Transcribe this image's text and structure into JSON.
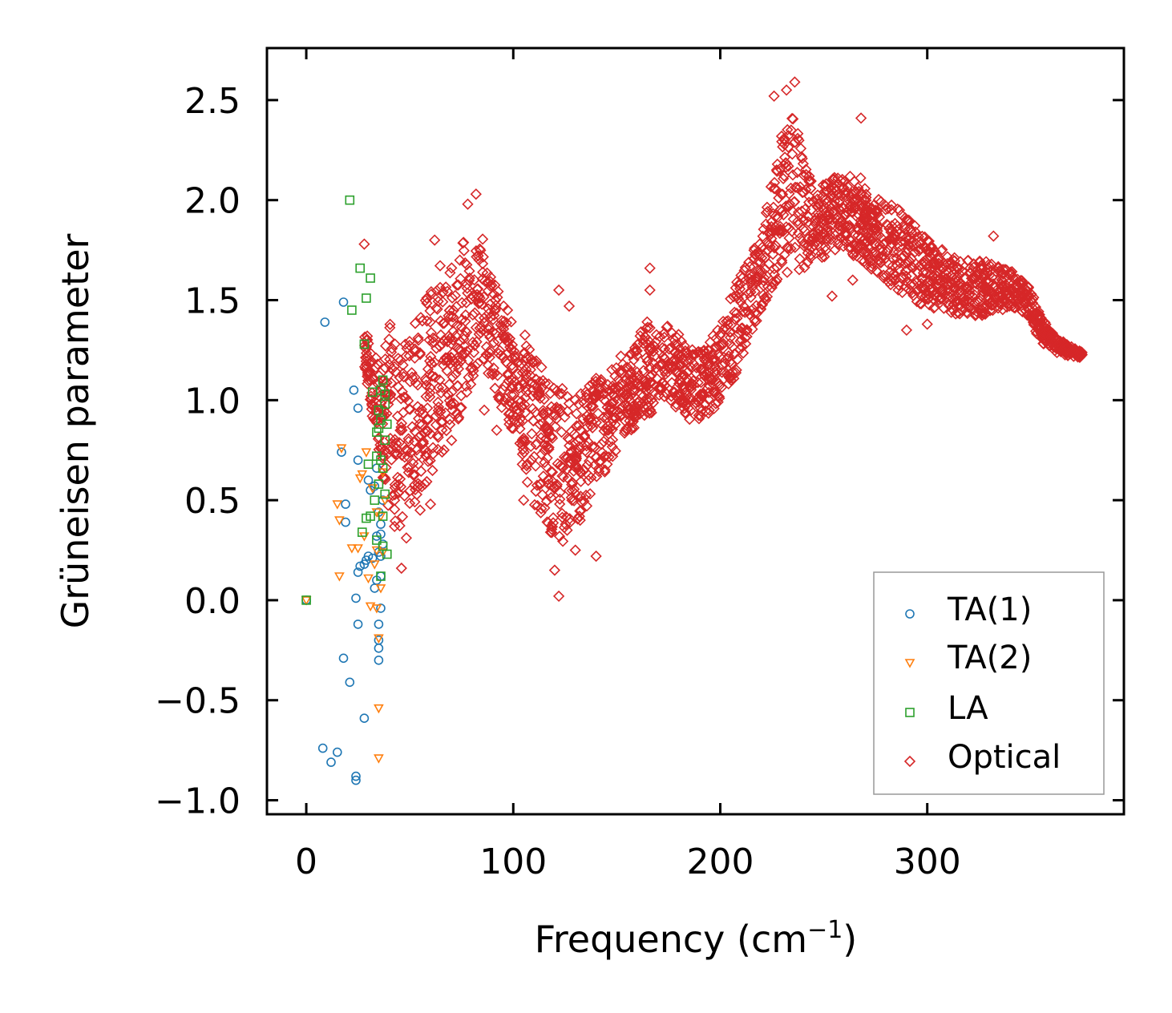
{
  "chart_data": {
    "type": "scatter",
    "title": "",
    "xlabel": "Frequency (cm",
    "xlabel_sup": "−1",
    "xlabel_close": ")",
    "ylabel": "Grüneisen parameter",
    "xlim": [
      -19,
      395
    ],
    "ylim": [
      -1.07,
      2.76
    ],
    "xticks": [
      0,
      100,
      200,
      300
    ],
    "xtick_labels": [
      "0",
      "100",
      "200",
      "300"
    ],
    "yticks": [
      -1.0,
      -0.5,
      0.0,
      0.5,
      1.0,
      1.5,
      2.0,
      2.5
    ],
    "ytick_labels": [
      "−1.0",
      "−0.5",
      "0.0",
      "0.5",
      "1.0",
      "1.5",
      "2.0",
      "2.5"
    ],
    "legend_position": "lower-right",
    "series": [
      {
        "name": "TA(1)",
        "marker": "circle",
        "color": "#1f77b4",
        "points": [
          [
            0,
            0
          ],
          [
            9,
            1.39
          ],
          [
            17,
            0.74
          ],
          [
            18,
            1.49
          ],
          [
            19,
            0.48
          ],
          [
            19,
            0.39
          ],
          [
            23,
            1.05
          ],
          [
            25,
            0.96
          ],
          [
            25,
            0.7
          ],
          [
            25,
            0.14
          ],
          [
            24,
            0.01
          ],
          [
            26,
            0.17
          ],
          [
            28,
            0.18
          ],
          [
            29,
            0.2
          ],
          [
            30,
            0.22
          ],
          [
            30,
            0.6
          ],
          [
            31,
            0.55
          ],
          [
            32,
            0.21
          ],
          [
            33,
            0.57
          ],
          [
            34,
            0.66
          ],
          [
            34,
            0.32
          ],
          [
            35,
            0.24
          ],
          [
            35,
            0.44
          ],
          [
            36,
            0.12
          ],
          [
            36,
            0.33
          ],
          [
            36,
            0.22
          ],
          [
            36,
            -0.04
          ],
          [
            35,
            -0.12
          ],
          [
            35,
            -0.2
          ],
          [
            35,
            -0.24
          ],
          [
            35,
            -0.3
          ],
          [
            25,
            -0.12
          ],
          [
            18,
            -0.29
          ],
          [
            21,
            -0.41
          ],
          [
            28,
            -0.59
          ],
          [
            8,
            -0.74
          ],
          [
            12,
            -0.81
          ],
          [
            15,
            -0.76
          ],
          [
            24,
            -0.88
          ],
          [
            24,
            -0.9
          ],
          [
            37,
            0.28
          ],
          [
            37,
            0.5
          ],
          [
            36,
            0.38
          ],
          [
            34,
            0.1
          ],
          [
            33,
            0.06
          ]
        ]
      },
      {
        "name": "TA(2)",
        "marker": "triangle-down",
        "color": "#ff7f0e",
        "points": [
          [
            0,
            0
          ],
          [
            15,
            0.48
          ],
          [
            16,
            0.4
          ],
          [
            16,
            0.12
          ],
          [
            17,
            0.76
          ],
          [
            22,
            0.26
          ],
          [
            25,
            0.26
          ],
          [
            26,
            0.61
          ],
          [
            27,
            0.63
          ],
          [
            28,
            0.32
          ],
          [
            29,
            0.74
          ],
          [
            30,
            0.11
          ],
          [
            31,
            -0.03
          ],
          [
            32,
            0.56
          ],
          [
            34,
            0.25
          ],
          [
            34,
            -0.04
          ],
          [
            35,
            -0.19
          ],
          [
            35,
            -0.54
          ],
          [
            35,
            -0.79
          ],
          [
            36,
            0.42
          ],
          [
            37,
            0.64
          ],
          [
            37,
            0.24
          ],
          [
            38,
            0.5
          ],
          [
            34,
            0.44
          ],
          [
            33,
            0.18
          ],
          [
            36,
            0.06
          ]
        ]
      },
      {
        "name": "LA",
        "marker": "square",
        "color": "#2ca02c",
        "points": [
          [
            0,
            0
          ],
          [
            21,
            2.0
          ],
          [
            22,
            1.45
          ],
          [
            26,
            1.66
          ],
          [
            28,
            1.28
          ],
          [
            29,
            1.51
          ],
          [
            31,
            1.61
          ],
          [
            32,
            1.04
          ],
          [
            27,
            0.34
          ],
          [
            29,
            0.41
          ],
          [
            30,
            0.68
          ],
          [
            31,
            0.42
          ],
          [
            33,
            0.5
          ],
          [
            34,
            0.72
          ],
          [
            34,
            0.84
          ],
          [
            35,
            0.86
          ],
          [
            35,
            0.95
          ],
          [
            35,
            0.58
          ],
          [
            36,
            0.9
          ],
          [
            36,
            1.05
          ],
          [
            36,
            0.12
          ],
          [
            37,
            0.66
          ],
          [
            37,
            0.42
          ],
          [
            37,
            1.1
          ],
          [
            37,
            0.27
          ],
          [
            38,
            0.8
          ],
          [
            38,
            0.98
          ],
          [
            38,
            0.53
          ],
          [
            38,
            1.03
          ],
          [
            39,
            0.88
          ],
          [
            39,
            0.23
          ],
          [
            36,
            0.7
          ],
          [
            34,
            0.3
          ]
        ]
      },
      {
        "name": "Optical",
        "marker": "diamond",
        "color": "#d62728",
        "upper": [
          [
            28,
            1.38
          ],
          [
            36,
            1.15
          ],
          [
            40,
            1.4
          ],
          [
            44,
            1.25
          ],
          [
            48,
            1.3
          ],
          [
            53,
            1.45
          ],
          [
            58,
            1.55
          ],
          [
            65,
            1.68
          ],
          [
            72,
            1.75
          ],
          [
            80,
            1.87
          ],
          [
            85,
            1.88
          ],
          [
            90,
            1.62
          ],
          [
            95,
            1.5
          ],
          [
            100,
            1.4
          ],
          [
            105,
            1.35
          ],
          [
            110,
            1.27
          ],
          [
            115,
            1.15
          ],
          [
            120,
            1.1
          ],
          [
            126,
            1.08
          ],
          [
            132,
            1.05
          ],
          [
            138,
            1.12
          ],
          [
            145,
            1.14
          ],
          [
            152,
            1.18
          ],
          [
            158,
            1.26
          ],
          [
            164,
            1.4
          ],
          [
            170,
            1.35
          ],
          [
            176,
            1.38
          ],
          [
            182,
            1.32
          ],
          [
            188,
            1.24
          ],
          [
            194,
            1.28
          ],
          [
            200,
            1.38
          ],
          [
            206,
            1.55
          ],
          [
            210,
            1.65
          ],
          [
            214,
            1.7
          ],
          [
            220,
            1.85
          ],
          [
            226,
            2.15
          ],
          [
            230,
            2.38
          ],
          [
            236,
            2.42
          ],
          [
            240,
            2.2
          ],
          [
            246,
            2.05
          ],
          [
            252,
            2.1
          ],
          [
            258,
            2.15
          ],
          [
            264,
            2.13
          ],
          [
            270,
            2.1
          ],
          [
            276,
            2.02
          ],
          [
            282,
            1.98
          ],
          [
            288,
            1.95
          ],
          [
            296,
            1.85
          ],
          [
            304,
            1.78
          ],
          [
            312,
            1.72
          ],
          [
            320,
            1.7
          ],
          [
            328,
            1.7
          ],
          [
            336,
            1.66
          ],
          [
            344,
            1.64
          ],
          [
            350,
            1.55
          ],
          [
            356,
            1.4
          ],
          [
            362,
            1.32
          ],
          [
            368,
            1.28
          ],
          [
            375,
            1.24
          ]
        ],
        "lower": [
          [
            28,
            1.18
          ],
          [
            36,
            0.65
          ],
          [
            40,
            0.45
          ],
          [
            44,
            0.3
          ],
          [
            48,
            0.3
          ],
          [
            53,
            0.42
          ],
          [
            58,
            0.55
          ],
          [
            65,
            0.7
          ],
          [
            72,
            0.82
          ],
          [
            80,
            1.05
          ],
          [
            85,
            1.15
          ],
          [
            90,
            1.1
          ],
          [
            95,
            0.92
          ],
          [
            100,
            0.78
          ],
          [
            105,
            0.62
          ],
          [
            110,
            0.48
          ],
          [
            115,
            0.4
          ],
          [
            120,
            0.3
          ],
          [
            126,
            0.25
          ],
          [
            132,
            0.35
          ],
          [
            138,
            0.55
          ],
          [
            145,
            0.65
          ],
          [
            152,
            0.75
          ],
          [
            158,
            0.85
          ],
          [
            164,
            0.9
          ],
          [
            170,
            0.95
          ],
          [
            176,
            0.98
          ],
          [
            182,
            0.92
          ],
          [
            188,
            0.88
          ],
          [
            194,
            0.9
          ],
          [
            200,
            1.0
          ],
          [
            206,
            1.08
          ],
          [
            210,
            1.2
          ],
          [
            214,
            1.3
          ],
          [
            220,
            1.45
          ],
          [
            226,
            1.58
          ],
          [
            230,
            1.62
          ],
          [
            236,
            1.65
          ],
          [
            240,
            1.65
          ],
          [
            246,
            1.7
          ],
          [
            252,
            1.72
          ],
          [
            258,
            1.75
          ],
          [
            264,
            1.72
          ],
          [
            270,
            1.68
          ],
          [
            276,
            1.62
          ],
          [
            282,
            1.58
          ],
          [
            288,
            1.52
          ],
          [
            296,
            1.48
          ],
          [
            304,
            1.45
          ],
          [
            312,
            1.42
          ],
          [
            320,
            1.42
          ],
          [
            328,
            1.42
          ],
          [
            336,
            1.45
          ],
          [
            344,
            1.46
          ],
          [
            350,
            1.38
          ],
          [
            356,
            1.28
          ],
          [
            362,
            1.24
          ],
          [
            368,
            1.22
          ],
          [
            375,
            1.21
          ]
        ],
        "outliers": [
          [
            28,
            1.78
          ],
          [
            46,
            0.16
          ],
          [
            62,
            1.8
          ],
          [
            78,
            1.98
          ],
          [
            82,
            2.03
          ],
          [
            105,
            0.5
          ],
          [
            118,
            0.34
          ],
          [
            120,
            0.15
          ],
          [
            122,
            0.02
          ],
          [
            130,
            0.25
          ],
          [
            166,
            1.66
          ],
          [
            166,
            1.55
          ],
          [
            236,
            2.59
          ],
          [
            232,
            2.55
          ],
          [
            268,
            2.41
          ],
          [
            254,
            1.52
          ],
          [
            300,
            1.38
          ],
          [
            290,
            1.35
          ],
          [
            332,
            1.82
          ],
          [
            226,
            2.52
          ],
          [
            264,
            1.6
          ],
          [
            122,
            1.55
          ],
          [
            127,
            1.47
          ],
          [
            86,
            0.95
          ],
          [
            92,
            0.85
          ],
          [
            140,
            0.22
          ],
          [
            152,
            1.22
          ],
          [
            178,
            1.3
          ],
          [
            196,
            1.2
          ],
          [
            60,
            0.48
          ],
          [
            55,
            0.45
          ]
        ]
      }
    ]
  }
}
